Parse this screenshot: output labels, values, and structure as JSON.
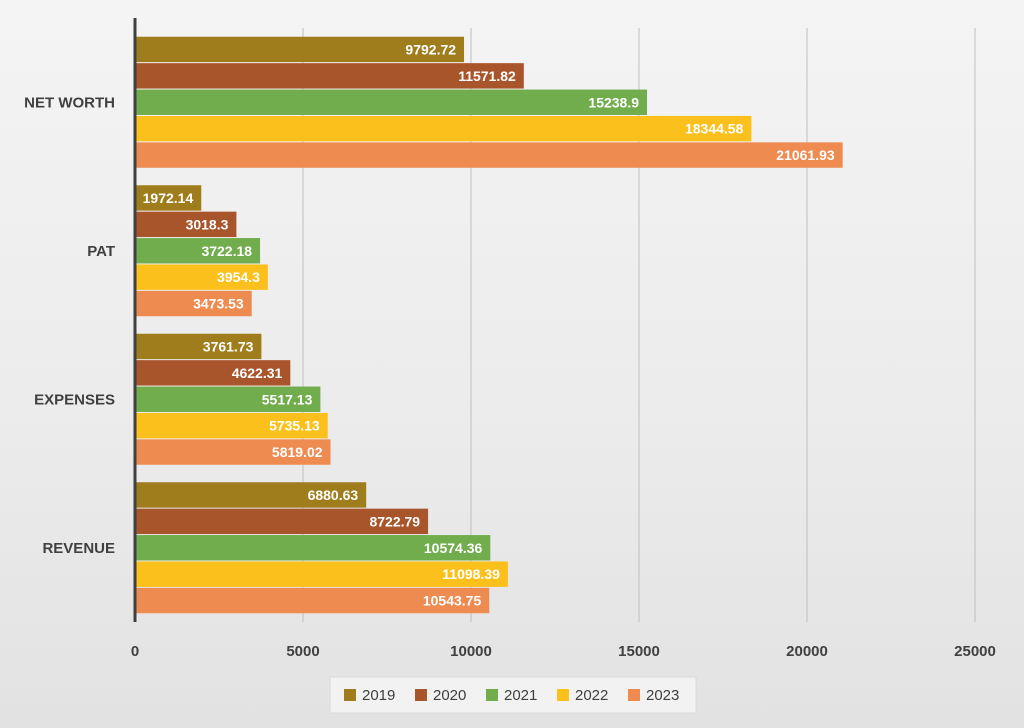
{
  "chart_data": {
    "type": "bar",
    "orientation": "horizontal",
    "categories": [
      "REVENUE",
      "EXPENSES",
      "PAT",
      "NET WORTH"
    ],
    "series": [
      {
        "name": "2019",
        "color": "#a07d1c",
        "values": [
          6880.63,
          3761.73,
          1972.14,
          9792.72
        ]
      },
      {
        "name": "2020",
        "color": "#a9552b",
        "values": [
          8722.79,
          4622.31,
          3018.3,
          11571.82
        ]
      },
      {
        "name": "2021",
        "color": "#72ad4d",
        "values": [
          10574.36,
          5517.13,
          3722.18,
          15238.9
        ]
      },
      {
        "name": "2022",
        "color": "#fcc01c",
        "values": [
          11098.39,
          5735.13,
          3954.3,
          18344.58
        ]
      },
      {
        "name": "2023",
        "color": "#ee8b50",
        "values": [
          10543.75,
          5819.02,
          3473.53,
          21061.93
        ]
      }
    ],
    "data_labels": {
      "REVENUE": [
        "6880.63",
        "8722.79",
        "10574.36",
        "11098.39",
        "10543.75"
      ],
      "EXPENSES": [
        "3761.73",
        "4622.31",
        "5517.13",
        "5735.13",
        "5819.02"
      ],
      "PAT": [
        "1972.14",
        "3018.3",
        "3722.18",
        "3954.3",
        "3473.53"
      ],
      "NET WORTH": [
        "9792.72",
        "11571.82",
        "15238.9",
        "18344.58",
        "21061.93"
      ]
    },
    "xlim": [
      0,
      25000
    ],
    "x_ticks": [
      "0",
      "5000",
      "10000",
      "15000",
      "20000",
      "25000"
    ],
    "title": "",
    "xlabel": "",
    "ylabel": "",
    "grid": "vertical",
    "legend": "bottom"
  }
}
